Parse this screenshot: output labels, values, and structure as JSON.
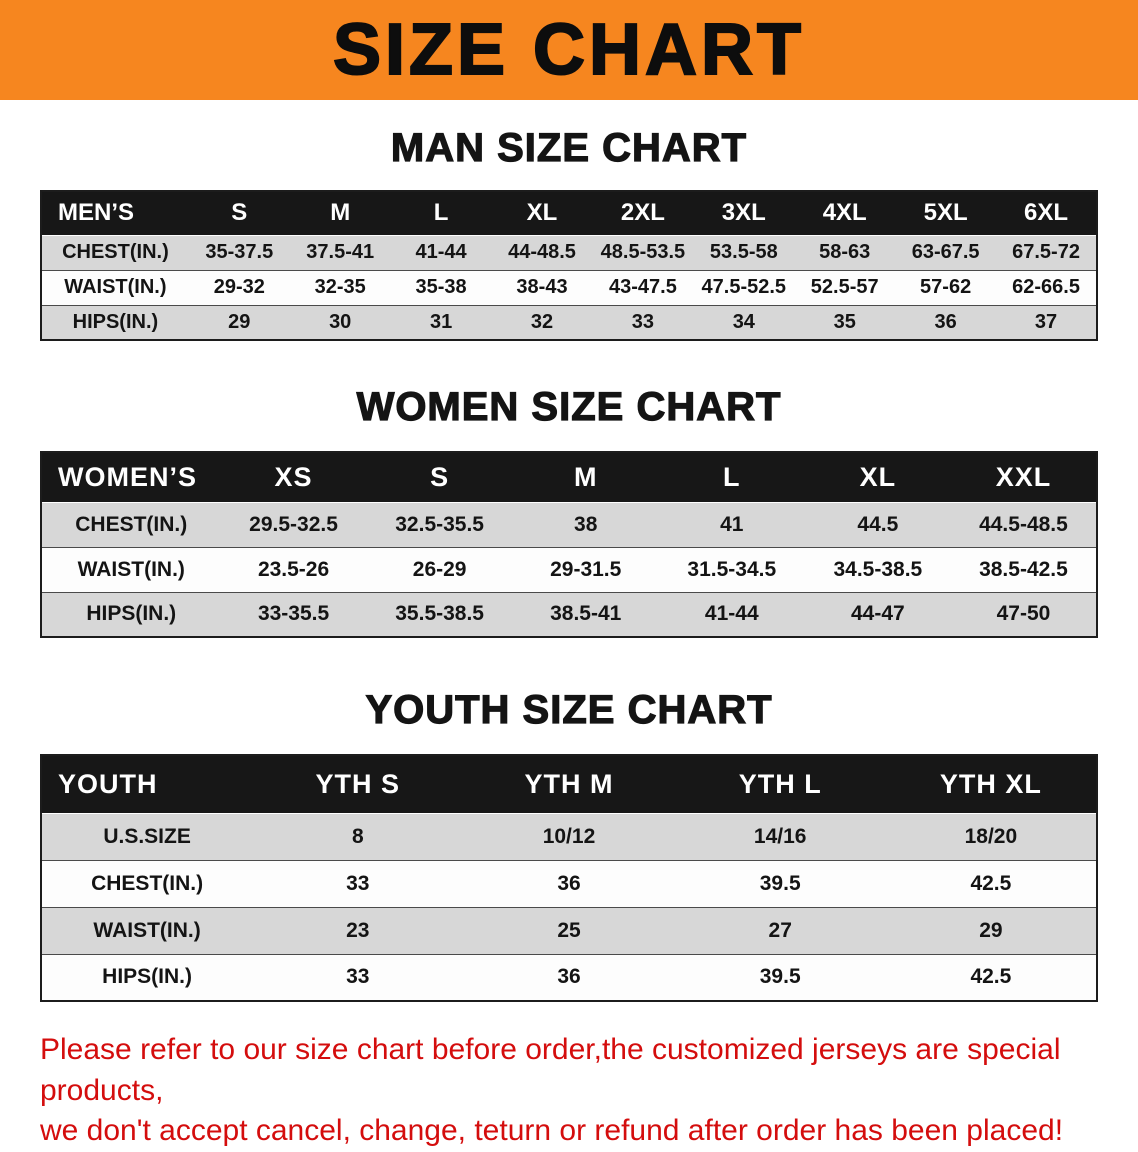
{
  "banner": {
    "title": "SIZE CHART"
  },
  "colors": {
    "banner-bg": "#f6861f",
    "table-header-bg": "#171717",
    "stripe-gray": "#d7d7d7",
    "notice-red": "#d40d0d"
  },
  "sections": {
    "men": {
      "heading": "MAN SIZE CHART",
      "table": {
        "header": [
          "MEN’S",
          "S",
          "M",
          "L",
          "XL",
          "2XL",
          "3XL",
          "4XL",
          "5XL",
          "6XL"
        ],
        "rows": [
          [
            "CHEST(IN.)",
            "35-37.5",
            "37.5-41",
            "41-44",
            "44-48.5",
            "48.5-53.5",
            "53.5-58",
            "58-63",
            "63-67.5",
            "67.5-72"
          ],
          [
            "WAIST(IN.)",
            "29-32",
            "32-35",
            "35-38",
            "38-43",
            "43-47.5",
            "47.5-52.5",
            "52.5-57",
            "57-62",
            "62-66.5"
          ],
          [
            "HIPS(IN.)",
            "29",
            "30",
            "31",
            "32",
            "33",
            "34",
            "35",
            "36",
            "37"
          ]
        ]
      }
    },
    "women": {
      "heading": "WOMEN SIZE CHART",
      "table": {
        "header": [
          "WOMEN’S",
          "XS",
          "S",
          "M",
          "L",
          "XL",
          "XXL"
        ],
        "rows": [
          [
            "CHEST(IN.)",
            "29.5-32.5",
            "32.5-35.5",
            "38",
            "41",
            "44.5",
            "44.5-48.5"
          ],
          [
            "WAIST(IN.)",
            "23.5-26",
            "26-29",
            "29-31.5",
            "31.5-34.5",
            "34.5-38.5",
            "38.5-42.5"
          ],
          [
            "HIPS(IN.)",
            "33-35.5",
            "35.5-38.5",
            "38.5-41",
            "41-44",
            "44-47",
            "47-50"
          ]
        ]
      }
    },
    "youth": {
      "heading": "YOUTH SIZE CHART",
      "table": {
        "header": [
          "YOUTH",
          "YTH S",
          "YTH M",
          "YTH L",
          "YTH XL"
        ],
        "rows": [
          [
            "U.S.SIZE",
            "8",
            "10/12",
            "14/16",
            "18/20"
          ],
          [
            "CHEST(IN.)",
            "33",
            "36",
            "39.5",
            "42.5"
          ],
          [
            "WAIST(IN.)",
            "23",
            "25",
            "27",
            "29"
          ],
          [
            "HIPS(IN.)",
            "33",
            "36",
            "39.5",
            "42.5"
          ]
        ]
      }
    }
  },
  "footer": {
    "line1": "Please refer to our size chart before order,the customized jerseys are special products,",
    "line2": "we don't accept cancel, change, teturn or refund after order has been placed!"
  }
}
